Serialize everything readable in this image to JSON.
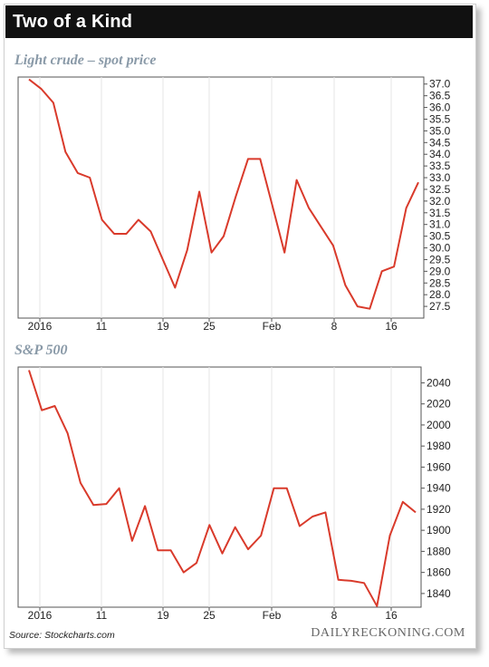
{
  "title": "Two of a Kind",
  "source": "Source: Stockcharts.com",
  "brand": "DAILYRECKONING.COM",
  "colors": {
    "line": "#d93a2b",
    "grid": "#e6e6e6",
    "axis": "#555555",
    "title_bg": "#111111",
    "subtitle": "#8a9aa8"
  },
  "chart_data": [
    {
      "type": "line",
      "title": "Light crude – spot price",
      "x_ticks": [
        "2016",
        "11",
        "19",
        "25",
        "Feb",
        "8",
        "16"
      ],
      "y_ticks": [
        27.5,
        28.0,
        28.5,
        29.0,
        29.5,
        30.0,
        30.5,
        31.0,
        31.5,
        32.0,
        32.5,
        33.0,
        33.5,
        34.0,
        34.5,
        35.0,
        35.5,
        36.0,
        36.5,
        37.0
      ],
      "ylim": [
        27.0,
        37.3
      ],
      "grid": true,
      "series": [
        {
          "values": [
            37.2,
            36.8,
            36.2,
            34.1,
            33.2,
            33.0,
            31.2,
            30.6,
            30.6,
            31.2,
            30.7,
            29.5,
            28.3,
            29.9,
            32.4,
            29.8,
            30.5,
            32.2,
            33.8,
            33.8,
            31.8,
            29.8,
            32.9,
            31.7,
            30.9,
            30.1,
            28.4,
            27.5,
            27.4,
            29.0,
            29.2,
            31.7,
            32.8
          ]
        }
      ]
    },
    {
      "type": "line",
      "title": "S&P 500",
      "x_ticks": [
        "2016",
        "11",
        "19",
        "25",
        "Feb",
        "8",
        "16"
      ],
      "y_ticks": [
        1840,
        1860,
        1880,
        1900,
        1920,
        1940,
        1960,
        1980,
        2000,
        2020,
        2040
      ],
      "ylim": [
        1827,
        2055
      ],
      "grid": true,
      "series": [
        {
          "values": [
            2052,
            2014,
            2018,
            1992,
            1945,
            1924,
            1925,
            1940,
            1890,
            1923,
            1881,
            1881,
            1860,
            1869,
            1905,
            1878,
            1903,
            1882,
            1895,
            1940,
            1940,
            1904,
            1913,
            1917,
            1853,
            1852,
            1850,
            1828,
            1895,
            1927,
            1917
          ]
        }
      ]
    }
  ]
}
